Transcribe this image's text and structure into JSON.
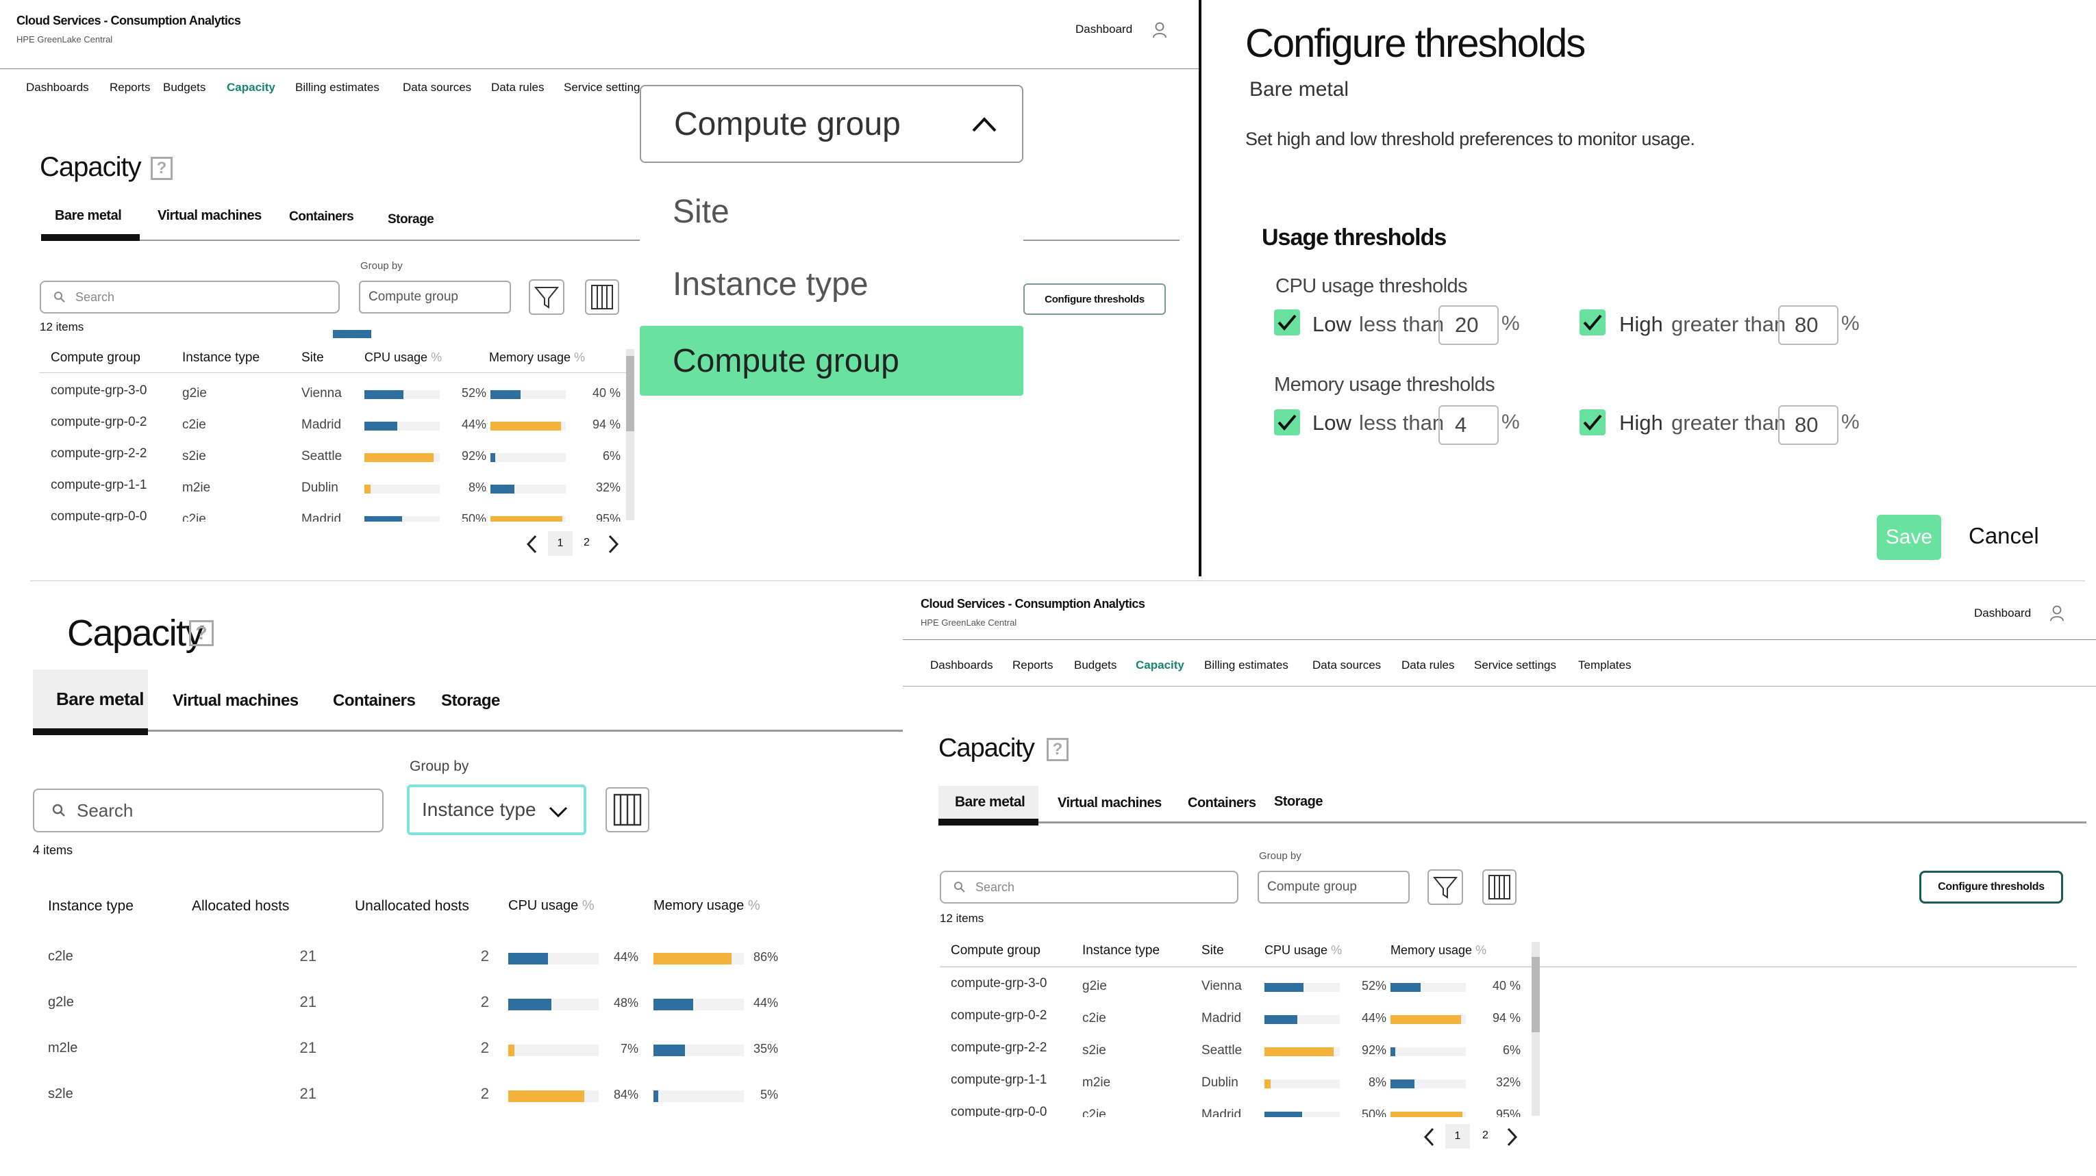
{
  "header": {
    "title": "Cloud Services - Consumption Analytics",
    "subtitle": "HPE GreenLake Central",
    "dashboard": "Dashboard"
  },
  "nav": [
    "Dashboards",
    "Reports",
    "Budgets",
    "Capacity",
    "Billing estimates",
    "Data sources",
    "Data rules",
    "Service settings",
    "Templates"
  ],
  "nav_partial": "Service setting",
  "page_title": "Capacity",
  "help_glyph": "?",
  "tabs": [
    "Bare metal",
    "Virtual machines",
    "Containers",
    "Storage"
  ],
  "search_placeholder": "Search",
  "group_by_label": "Group by",
  "group_by_value": "Compute group",
  "group_by_value_instance": "Instance type",
  "items_count": "12 items",
  "items_count_instance": "4 items",
  "configure_button": "Configure thresholds",
  "pct": "%",
  "table_columns": [
    "Compute group",
    "Instance type",
    "Site",
    "CPU usage",
    "Memory usage"
  ],
  "table_rows": [
    {
      "group": "compute-grp-3-0",
      "type": "g2ie",
      "site": "Vienna",
      "cpu": 52,
      "cpu_label": "52%",
      "mem": 40,
      "mem_label": "40 %",
      "cpu_color": "blue",
      "mem_color": "blue"
    },
    {
      "group": "compute-grp-0-2",
      "type": "c2ie",
      "site": "Madrid",
      "cpu": 44,
      "cpu_label": "44%",
      "mem": 94,
      "mem_label": "94 %",
      "cpu_color": "blue",
      "mem_color": "yellow"
    },
    {
      "group": "compute-grp-2-2",
      "type": "s2ie",
      "site": "Seattle",
      "cpu": 92,
      "cpu_label": "92%",
      "mem": 6,
      "mem_label": "6%",
      "cpu_color": "yellow",
      "mem_color": "blue"
    },
    {
      "group": "compute-grp-1-1",
      "type": "m2ie",
      "site": "Dublin",
      "cpu": 8,
      "cpu_label": "8%",
      "mem": 32,
      "mem_label": "32%",
      "cpu_color": "yellow",
      "mem_color": "blue"
    },
    {
      "group": "compute-grp-0-0",
      "type": "c2ie",
      "site": "Madrid",
      "cpu": 50,
      "cpu_label": "50%",
      "mem": 95,
      "mem_label": "95%",
      "cpu_color": "blue",
      "mem_color": "yellow"
    }
  ],
  "pagination": {
    "page1": "1",
    "page2": "2"
  },
  "dropdown": {
    "selected": "Compute group",
    "options": [
      "Site",
      "Instance type",
      "Compute group"
    ]
  },
  "thresholds": {
    "title": "Configure thresholds",
    "subtitle": "Bare metal",
    "description": "Set high and low threshold preferences to monitor usage.",
    "section": "Usage thresholds",
    "cpu_label": "CPU usage thresholds",
    "mem_label": "Memory usage thresholds",
    "low": "Low",
    "high": "High",
    "less_than": "less than",
    "greater_than": "greater than",
    "cpu_low": "20",
    "cpu_high": "80",
    "mem_low": "4",
    "mem_high": "80",
    "save": "Save",
    "cancel": "Cancel"
  },
  "instance_table": {
    "columns": [
      "Instance type",
      "Allocated hosts",
      "Unallocated hosts",
      "CPU usage",
      "Memory usage"
    ],
    "rows": [
      {
        "type": "c2le",
        "alloc": "21",
        "unalloc": "2",
        "cpu": 44,
        "cpu_label": "44%",
        "mem": 86,
        "mem_label": "86%",
        "cpu_color": "blue",
        "mem_color": "yellow"
      },
      {
        "type": "g2le",
        "alloc": "21",
        "unalloc": "2",
        "cpu": 48,
        "cpu_label": "48%",
        "mem": 44,
        "mem_label": "44%",
        "cpu_color": "blue",
        "mem_color": "blue"
      },
      {
        "type": "m2le",
        "alloc": "21",
        "unalloc": "2",
        "cpu": 7,
        "cpu_label": "7%",
        "mem": 35,
        "mem_label": "35%",
        "cpu_color": "yellow",
        "mem_color": "blue"
      },
      {
        "type": "s2le",
        "alloc": "21",
        "unalloc": "2",
        "cpu": 84,
        "cpu_label": "84%",
        "mem": 5,
        "mem_label": "5%",
        "cpu_color": "yellow",
        "mem_color": "blue"
      }
    ]
  },
  "colors": {
    "accent": "#16866e",
    "blue_bar": "#2e6fa0",
    "yellow_bar": "#f2b23c",
    "check": "#69e2a0",
    "selected_option": "#69e2a0",
    "focus_border": "#7de3dc"
  },
  "icons": {
    "user": "user-icon",
    "help": "help-icon",
    "filter": "filter-icon",
    "columns": "columns-icon",
    "chevron_up": "chevron-up-icon",
    "chevron_down": "chevron-down-icon",
    "chevron_left": "chevron-left-icon",
    "chevron_right": "chevron-right-icon",
    "check": "check-icon",
    "search": "search-icon"
  }
}
